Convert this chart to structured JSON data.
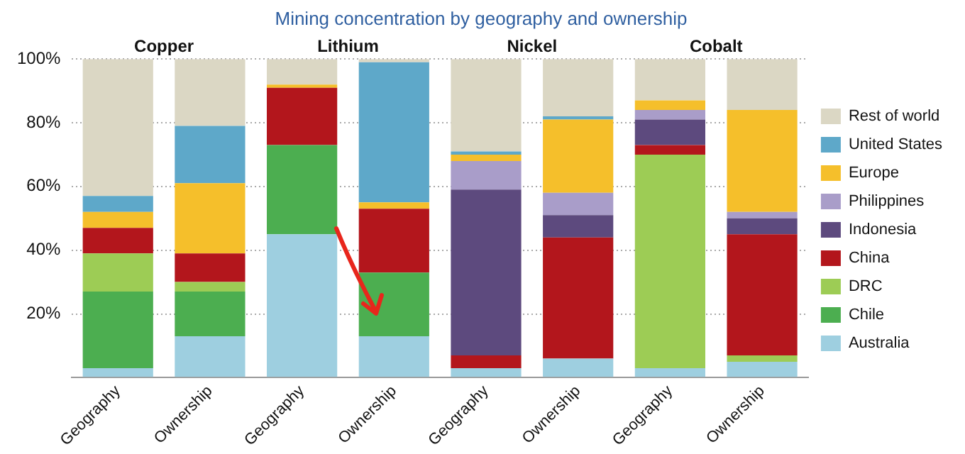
{
  "chart_data": {
    "type": "bar",
    "stacked": true,
    "title": "Mining concentration by geography and ownership",
    "categories": [
      "Geography",
      "Ownership",
      "Geography",
      "Ownership",
      "Geography",
      "Ownership",
      "Geography",
      "Ownership"
    ],
    "annotations": [
      "Copper",
      "Lithium",
      "Nickel",
      "Cobalt"
    ],
    "series": [
      {
        "name": "Australia",
        "color": "#9ecfe0",
        "values": [
          3,
          13,
          45,
          13,
          3,
          6,
          3,
          5
        ]
      },
      {
        "name": "Chile",
        "color": "#4cae50",
        "values": [
          24,
          14,
          28,
          20,
          0,
          0,
          0,
          0
        ]
      },
      {
        "name": "DRC",
        "color": "#9dcc55",
        "values": [
          12,
          3,
          0,
          0,
          0,
          0,
          67,
          2
        ]
      },
      {
        "name": "China",
        "color": "#b3161c",
        "values": [
          8,
          9,
          18,
          20,
          4,
          38,
          3,
          38
        ]
      },
      {
        "name": "Indonesia",
        "color": "#5d4a7e",
        "values": [
          0,
          0,
          0,
          0,
          52,
          7,
          8,
          5
        ]
      },
      {
        "name": "Philippines",
        "color": "#a99dc9",
        "values": [
          0,
          0,
          0,
          0,
          9,
          7,
          3,
          2
        ]
      },
      {
        "name": "Europe",
        "color": "#f5bf2b",
        "values": [
          5,
          22,
          1,
          2,
          2,
          23,
          3,
          32
        ]
      },
      {
        "name": "United States",
        "color": "#5ea8c9",
        "values": [
          5,
          18,
          0,
          44,
          1,
          1,
          0,
          0
        ]
      },
      {
        "name": "Rest of world",
        "color": "#dbd7c4",
        "values": [
          43,
          21,
          8,
          1,
          29,
          18,
          13,
          16
        ]
      }
    ],
    "ylim": [
      0,
      100
    ],
    "yticks": [
      {
        "value": 0,
        "label": null
      },
      {
        "value": 20,
        "label": "20%"
      },
      {
        "value": 40,
        "label": "40%"
      },
      {
        "value": 60,
        "label": "60%"
      },
      {
        "value": 80,
        "label": "80%"
      },
      {
        "value": 100,
        "label": "100%"
      }
    ],
    "grid": "y",
    "legend": "right"
  }
}
